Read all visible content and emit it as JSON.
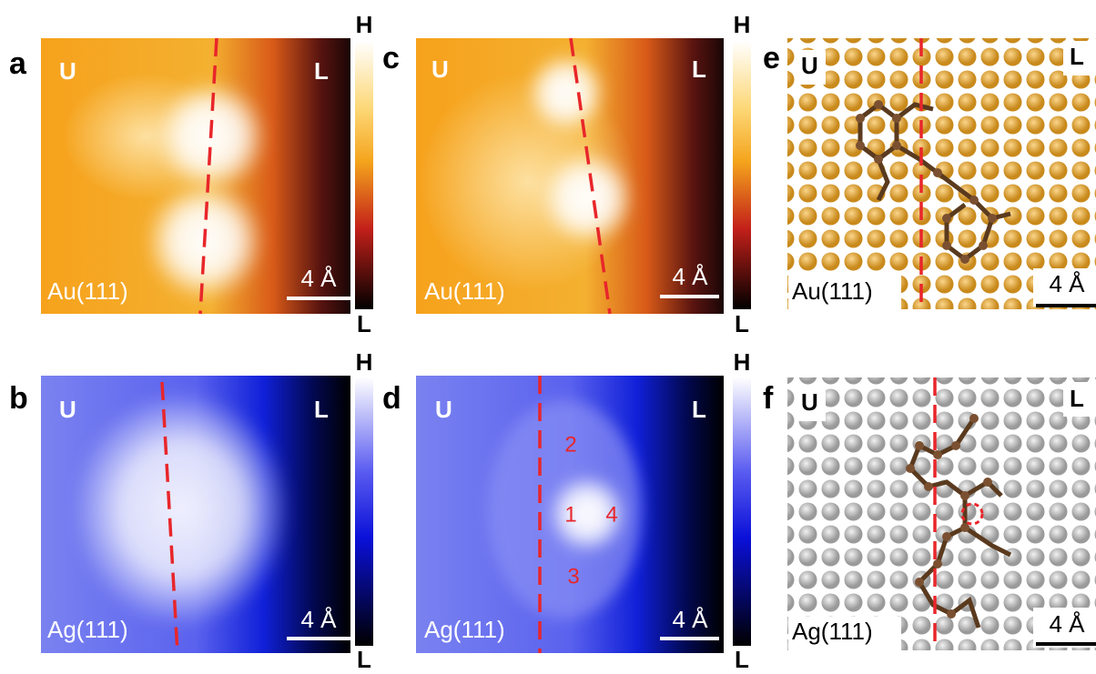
{
  "panels": [
    {
      "letter": "a",
      "left": "U",
      "right": "L",
      "substrate": "Au(111)",
      "scale": "4 Å",
      "colorbar": {
        "high": "H",
        "low": "L"
      }
    },
    {
      "letter": "b",
      "left": "U",
      "right": "L",
      "substrate": "Ag(111)",
      "scale": "4 Å",
      "colorbar": {
        "high": "H",
        "low": "L"
      }
    },
    {
      "letter": "c",
      "left": "U",
      "right": "L",
      "substrate": "Au(111)",
      "scale": "4 Å",
      "colorbar": {
        "high": "H",
        "low": "L"
      }
    },
    {
      "letter": "d",
      "left": "U",
      "right": "L",
      "substrate": "Ag(111)",
      "scale": "4 Å",
      "colorbar": {
        "high": "H",
        "low": "L"
      },
      "markers": [
        "1",
        "2",
        "3",
        "4"
      ]
    },
    {
      "letter": "e",
      "left": "U",
      "right": "L",
      "substrate": "Au(111)",
      "scale": "4 Å"
    },
    {
      "letter": "f",
      "left": "U",
      "right": "L",
      "substrate": "Ag(111)",
      "scale": "4 Å"
    }
  ]
}
